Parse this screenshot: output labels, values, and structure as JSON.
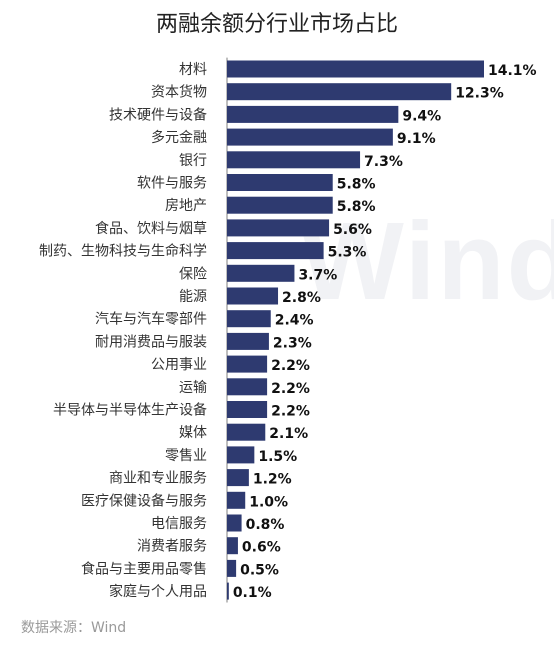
{
  "title": "两融余额分行业市场占比",
  "source": "数据来源：Wind",
  "watermark": "Wind",
  "colors": {
    "bar": "#2e3a70",
    "axis": "#7f7f7f",
    "label": "#333333",
    "value": "#111111"
  },
  "chart_data": {
    "type": "bar",
    "orientation": "horizontal",
    "categories": [
      "材料",
      "资本货物",
      "技术硬件与设备",
      "多元金融",
      "银行",
      "软件与服务",
      "房地产",
      "食品、饮料与烟草",
      "制药、生物科技与生命科学",
      "保险",
      "能源",
      "汽车与汽车零部件",
      "耐用消费品与服装",
      "公用事业",
      "运输",
      "半导体与半导体生产设备",
      "媒体",
      "零售业",
      "商业和专业服务",
      "医疗保健设备与服务",
      "电信服务",
      "消费者服务",
      "食品与主要用品零售",
      "家庭与个人用品"
    ],
    "values": [
      14.1,
      12.3,
      9.4,
      9.1,
      7.3,
      5.8,
      5.8,
      5.6,
      5.3,
      3.7,
      2.8,
      2.4,
      2.3,
      2.2,
      2.2,
      2.2,
      2.1,
      1.5,
      1.2,
      1.0,
      0.8,
      0.6,
      0.5,
      0.1
    ],
    "value_labels": [
      "14.1%",
      "12.3%",
      "9.4%",
      "9.1%",
      "7.3%",
      "5.8%",
      "5.8%",
      "5.6%",
      "5.3%",
      "3.7%",
      "2.8%",
      "2.4%",
      "2.3%",
      "2.2%",
      "2.2%",
      "2.2%",
      "2.1%",
      "1.5%",
      "1.2%",
      "1.0%",
      "0.8%",
      "0.6%",
      "0.5%",
      "0.1%"
    ],
    "unit": "%",
    "xlim": [
      0,
      14.1
    ],
    "grid": false,
    "legend": "none"
  }
}
